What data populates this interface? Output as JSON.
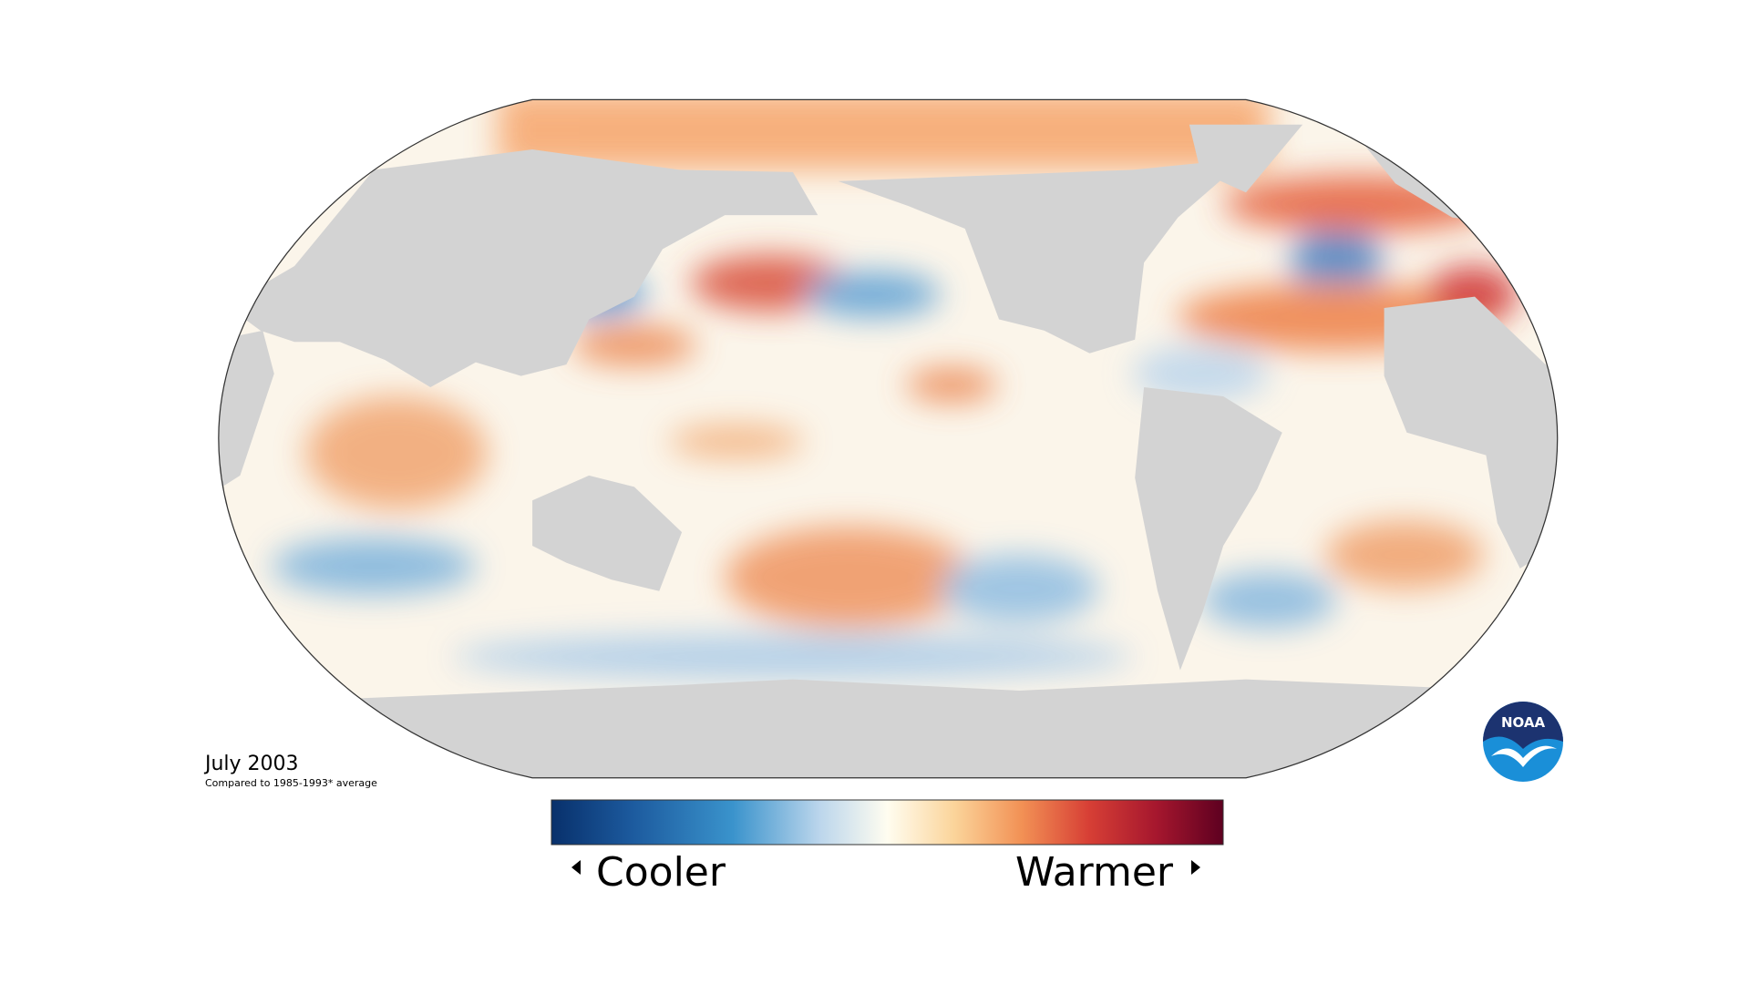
{
  "map": {
    "title": "July 2003",
    "subtitle": "Compared to 1985-1993* average",
    "legend": {
      "low_label": "Cooler",
      "high_label": "Warmer"
    },
    "logo_text": "NOAA"
  }
}
